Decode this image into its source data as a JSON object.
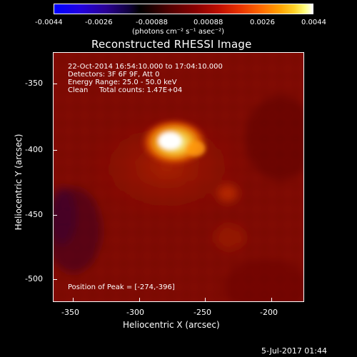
{
  "colorbar": {
    "tick_labels": [
      "-0.0044",
      "-0.0026",
      "-0.00088",
      "0.00088",
      "0.0026",
      "0.0044"
    ],
    "units_label": "(photons cm⁻² s⁻¹ asec⁻²)",
    "range": [
      -0.0044,
      0.0044
    ]
  },
  "plot": {
    "title": "Reconstructed RHESSI Image",
    "xlabel": "Heliocentric X (arcsec)",
    "ylabel": "Heliocentric Y (arcsec)",
    "x_ticks": [
      "-350",
      "-300",
      "-250",
      "-200"
    ],
    "y_ticks": [
      "-350",
      "-400",
      "-450",
      "-500"
    ],
    "xlim": [
      -365,
      -172
    ],
    "ylim": [
      -518,
      -322
    ]
  },
  "annotations": {
    "time_range": "22-Oct-2014 16:54:10.000 to 17:04:10.000",
    "detectors": "Detectors: 3F 6F 9F, Att 0",
    "energy_range": "Energy Range: 25.0 - 50.0 keV",
    "clean": "Clean",
    "total_counts": "Total counts: 1.47E+04",
    "peak": "Position of Peak = [-274,-396]"
  },
  "footer": {
    "date": "5-Jul-2017 01:44"
  },
  "colors": {
    "background": "#000000",
    "peak_core": "#ffffff",
    "peak_glow": "#ffa000",
    "field": "#8a0d04"
  }
}
